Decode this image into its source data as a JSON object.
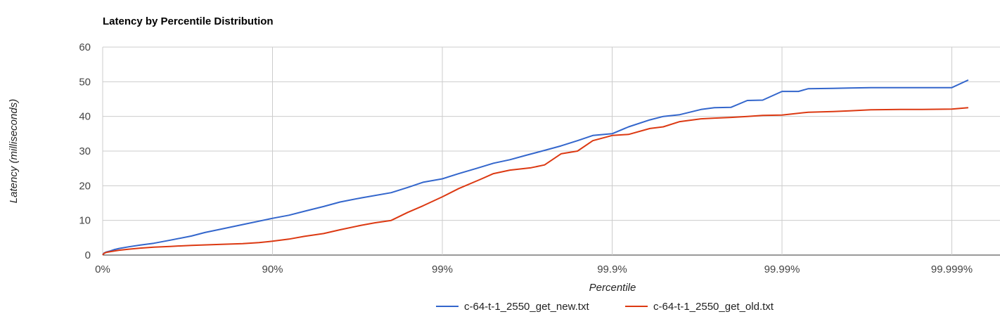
{
  "chart_data": {
    "type": "line",
    "title": "Latency by Percentile Distribution",
    "xlabel": "Percentile",
    "ylabel": "Latency (milliseconds)",
    "x_scale": "log_inverse_percentile",
    "x_ticks": [
      "0%",
      "90%",
      "99%",
      "99.9%",
      "99.99%",
      "99.999%"
    ],
    "y_ticks": [
      "0",
      "10",
      "20",
      "30",
      "40",
      "50",
      "60"
    ],
    "ylim": [
      0,
      60
    ],
    "xlim_percentile": [
      0,
      99.9999
    ],
    "grid": true,
    "legend_position": "bottom",
    "series": [
      {
        "name": "c-64-t-1_2550_get_new.txt",
        "color": "#3366cc",
        "x": [
          0,
          2,
          5,
          10,
          15,
          20,
          30,
          40,
          50,
          60,
          70,
          75,
          80,
          85,
          90,
          92,
          93.7,
          95,
          96,
          97,
          98,
          98.4,
          98.7,
          99,
          99.2,
          99.37,
          99.5,
          99.6,
          99.68,
          99.75,
          99.8,
          99.84,
          99.87,
          99.9,
          99.92,
          99.94,
          99.95,
          99.96,
          99.97,
          99.975,
          99.98,
          99.984,
          99.987,
          99.99,
          99.992,
          99.993,
          99.995,
          99.996,
          99.997,
          99.998,
          99.9985,
          99.999,
          99.9992
        ],
        "y": [
          0,
          0.6,
          0.9,
          1.2,
          1.6,
          1.9,
          2.4,
          2.9,
          3.4,
          4.3,
          5.5,
          6.5,
          7.5,
          8.8,
          10.6,
          11.5,
          12.8,
          14,
          15.3,
          16.5,
          18,
          19.5,
          21,
          22,
          23.5,
          25,
          26.5,
          27.5,
          28.8,
          30.2,
          31.5,
          33,
          34.5,
          35,
          37,
          39,
          40,
          40.5,
          42,
          42.5,
          42.6,
          44.6,
          44.7,
          47.2,
          47.2,
          48,
          48.1,
          48.2,
          48.3,
          48.3,
          48.3,
          48.3,
          50.5
        ]
      },
      {
        "name": "c-64-t-1_2550_get_old.txt",
        "color": "#dc3912",
        "x": [
          0,
          2,
          5,
          10,
          20,
          30,
          40,
          50,
          60,
          70,
          80,
          85,
          88,
          90,
          92,
          93.5,
          95,
          96,
          97,
          97.5,
          98,
          98.4,
          98.7,
          99,
          99.2,
          99.4,
          99.5,
          99.6,
          99.7,
          99.75,
          99.8,
          99.84,
          99.87,
          99.9,
          99.92,
          99.94,
          99.95,
          99.96,
          99.97,
          99.975,
          99.98,
          99.984,
          99.987,
          99.99,
          99.993,
          99.995,
          99.996,
          99.997,
          99.998,
          99.9985,
          99.999,
          99.9992
        ],
        "y": [
          0,
          0.5,
          0.8,
          1.0,
          1.4,
          1.7,
          2.0,
          2.3,
          2.5,
          2.8,
          3.1,
          3.3,
          3.6,
          4.0,
          4.6,
          5.4,
          6.2,
          7.3,
          8.6,
          9.3,
          10.0,
          12.3,
          14.2,
          16.8,
          19.2,
          21.8,
          23.5,
          24.5,
          25.2,
          26.0,
          29.2,
          30.0,
          33.0,
          34.5,
          34.8,
          36.5,
          37.0,
          38.5,
          39.3,
          39.5,
          39.7,
          40.0,
          40.3,
          40.4,
          41.2,
          41.4,
          41.6,
          41.9,
          42.0,
          42.0,
          42.1,
          42.5
        ]
      }
    ]
  }
}
